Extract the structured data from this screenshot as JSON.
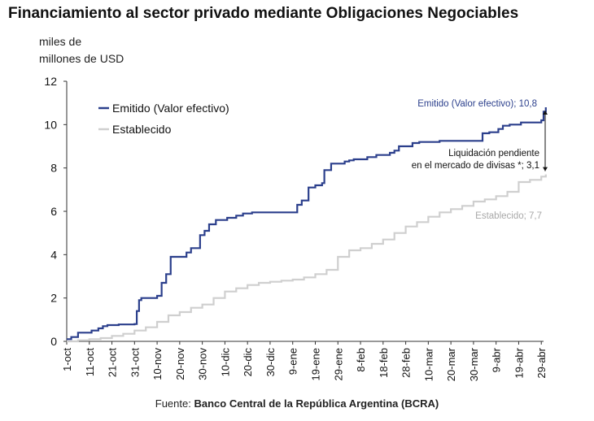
{
  "title": "Financiamiento al sector privado mediante Obligaciones Negociables",
  "y_unit_line1": "miles de",
  "y_unit_line2": "millones de USD",
  "source_prefix": "Fuente:",
  "source_name": "Banco Central de la República Argentina (BCRA)",
  "colors": {
    "emitido": "#2b3f8c",
    "establecido": "#cfcfcf",
    "axis": "#333333"
  },
  "chart_data": {
    "type": "line",
    "ylim": [
      0,
      12
    ],
    "y_ticks": [
      0,
      2,
      4,
      6,
      8,
      10,
      12
    ],
    "x_ticks": [
      "1-oct",
      "11-oct",
      "21-oct",
      "31-oct",
      "10-nov",
      "20-nov",
      "30-nov",
      "10-dic",
      "20-dic",
      "30-dic",
      "9-ene",
      "19-ene",
      "29-ene",
      "8-feb",
      "18-feb",
      "28-feb",
      "10-mar",
      "20-mar",
      "30-mar",
      "9-abr",
      "19-abr",
      "29-abr"
    ],
    "legend": [
      "Emitido (Valor efectivo)",
      "Establecido"
    ],
    "series": [
      {
        "name": "Emitido (Valor efectivo)",
        "x": [
          "1-oct",
          "3-oct",
          "6-oct",
          "8-oct",
          "10-oct",
          "12-oct",
          "15-oct",
          "17-oct",
          "19-oct",
          "21-oct",
          "24-oct",
          "31-oct",
          "1-nov",
          "2-nov",
          "3-nov",
          "10-nov",
          "12-nov",
          "14-nov",
          "16-nov",
          "20-nov",
          "23-nov",
          "25-nov",
          "29-nov",
          "1-dic",
          "3-dic",
          "6-dic",
          "9-dic",
          "11-dic",
          "15-dic",
          "18-dic",
          "22-dic",
          "9-ene",
          "11-ene",
          "13-ene",
          "15-ene",
          "16-ene",
          "19-ene",
          "21-ene",
          "22-ene",
          "23-ene",
          "26-ene",
          "28-ene",
          "1-feb",
          "3-feb",
          "5-feb",
          "8-feb",
          "11-feb",
          "15-feb",
          "18-feb",
          "21-feb",
          "23-feb",
          "25-feb",
          "28-feb",
          "3-mar",
          "6-mar",
          "10-mar",
          "15-mar",
          "31-mar",
          "3-abr",
          "6-abr",
          "10-abr",
          "12-abr",
          "15-abr",
          "18-abr",
          "20-abr",
          "29-abr",
          "30-abr",
          "1-may"
        ],
        "y": [
          0.1,
          0.2,
          0.4,
          0.4,
          0.4,
          0.5,
          0.6,
          0.7,
          0.75,
          0.75,
          0.78,
          0.8,
          1.4,
          1.9,
          2.0,
          2.1,
          2.7,
          3.1,
          3.9,
          3.9,
          4.1,
          4.3,
          4.9,
          5.1,
          5.4,
          5.6,
          5.6,
          5.7,
          5.8,
          5.9,
          5.95,
          5.95,
          6.3,
          6.5,
          6.5,
          7.1,
          7.2,
          7.2,
          7.3,
          7.9,
          8.2,
          8.2,
          8.3,
          8.35,
          8.4,
          8.4,
          8.5,
          8.6,
          8.6,
          8.7,
          8.8,
          9.0,
          9.0,
          9.15,
          9.2,
          9.2,
          9.25,
          9.25,
          9.6,
          9.65,
          9.8,
          9.95,
          10.0,
          10.0,
          10.1,
          10.2,
          10.6,
          10.8
        ]
      },
      {
        "name": "Establecido",
        "x": [
          "1-oct",
          "6-oct",
          "11-oct",
          "16-oct",
          "21-oct",
          "26-oct",
          "31-oct",
          "5-nov",
          "10-nov",
          "15-nov",
          "20-nov",
          "25-nov",
          "30-nov",
          "5-dic",
          "10-dic",
          "15-dic",
          "20-dic",
          "25-dic",
          "30-dic",
          "4-ene",
          "9-ene",
          "14-ene",
          "19-ene",
          "24-ene",
          "29-ene",
          "3-feb",
          "8-feb",
          "13-feb",
          "18-feb",
          "23-feb",
          "28-feb",
          "5-mar",
          "10-mar",
          "15-mar",
          "20-mar",
          "25-mar",
          "30-mar",
          "4-abr",
          "9-abr",
          "14-abr",
          "19-abr",
          "24-abr",
          "29-abr",
          "1-may"
        ],
        "y": [
          0.0,
          0.05,
          0.1,
          0.15,
          0.25,
          0.35,
          0.5,
          0.65,
          0.9,
          1.2,
          1.35,
          1.55,
          1.7,
          2.0,
          2.3,
          2.45,
          2.6,
          2.7,
          2.75,
          2.8,
          2.85,
          2.95,
          3.1,
          3.3,
          3.9,
          4.2,
          4.3,
          4.5,
          4.7,
          5.0,
          5.3,
          5.5,
          5.75,
          5.95,
          6.1,
          6.25,
          6.45,
          6.55,
          6.7,
          6.9,
          7.35,
          7.45,
          7.6,
          7.7
        ]
      }
    ],
    "annotations": {
      "emitido_end": "Emitido (Valor efectivo); 10,8",
      "establecido_end": "Establecido; 7,7",
      "gap_line1": "Liquidación pendiente",
      "gap_line2": "en el mercado de divisas *; 3,1"
    }
  }
}
